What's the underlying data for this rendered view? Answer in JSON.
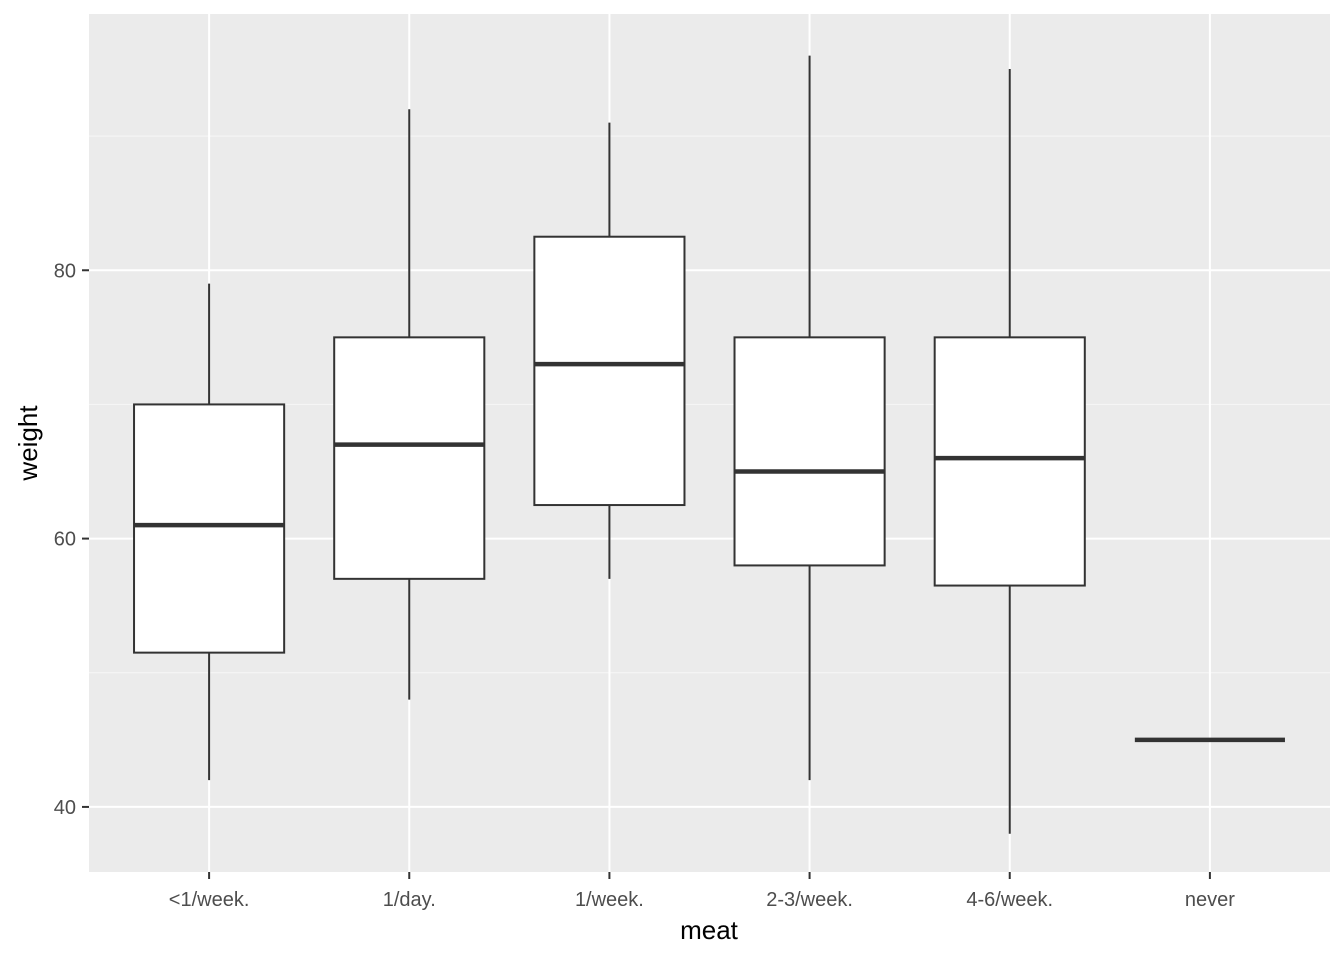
{
  "chart_data": {
    "type": "boxplot",
    "xlabel": "meat",
    "ylabel": "weight",
    "categories": [
      "<1/week.",
      "1/day.",
      "1/week.",
      "2-3/week.",
      "4-6/week.",
      "never"
    ],
    "boxes": [
      {
        "category": "<1/week.",
        "whisker_low": 42,
        "q1": 51.5,
        "median": 61,
        "q3": 70,
        "whisker_high": 79
      },
      {
        "category": "1/day.",
        "whisker_low": 48,
        "q1": 57,
        "median": 67,
        "q3": 75,
        "whisker_high": 92
      },
      {
        "category": "1/week.",
        "whisker_low": 57,
        "q1": 62.5,
        "median": 73,
        "q3": 82.5,
        "whisker_high": 91
      },
      {
        "category": "2-3/week.",
        "whisker_low": 42,
        "q1": 58,
        "median": 65,
        "q3": 75,
        "whisker_high": 96
      },
      {
        "category": "4-6/week.",
        "whisker_low": 38,
        "q1": 56.5,
        "median": 66,
        "q3": 75,
        "whisker_high": 95
      },
      {
        "category": "never",
        "whisker_low": 45,
        "q1": 45,
        "median": 45,
        "q3": 45,
        "whisker_high": 45
      }
    ],
    "y_ticks": [
      40,
      60,
      80
    ],
    "ylim": [
      35.15,
      99.1
    ],
    "grid": true,
    "colors": {
      "panel_background": "#ebebeb",
      "grid_major": "#ffffff",
      "grid_minor": "#f5f5f5",
      "box_fill": "#ffffff",
      "box_stroke": "#333333",
      "tick_text": "#4d4d4d",
      "title_text": "#000000"
    }
  }
}
